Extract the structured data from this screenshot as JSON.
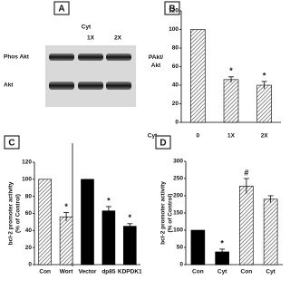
{
  "blot": {
    "panel_label": "A",
    "treatment": "Cyt",
    "lanes": [
      "1X",
      "2X"
    ],
    "rows": [
      "Phos Akt",
      "Akt"
    ]
  },
  "chart_data": [
    {
      "type": "bar",
      "panel_label": "B",
      "ylabel": [
        "PAkt/",
        "Akt"
      ],
      "xlabel": "Cyt",
      "categories": [
        "0",
        "1X",
        "2X"
      ],
      "values": [
        100,
        46,
        40
      ],
      "errors": [
        0,
        3,
        4
      ],
      "bar_styles": [
        "hatched",
        "hatched",
        "hatched"
      ],
      "marks": [
        null,
        "*",
        "*"
      ],
      "ylim": [
        0,
        120
      ],
      "yticks": [
        0,
        20,
        40,
        60,
        80,
        100,
        120
      ]
    },
    {
      "type": "bar",
      "panel_label": "C",
      "ylabel": [
        "bcl-2 promoter activity",
        "(% of Control)"
      ],
      "categories": [
        "Con",
        "Wort",
        "Vector",
        "dp85",
        "KDPDK1"
      ],
      "values": [
        100,
        56,
        100,
        63,
        45
      ],
      "errors": [
        0,
        5,
        0,
        5,
        3
      ],
      "bar_styles": [
        "hatched",
        "hatched",
        "solid",
        "solid",
        "solid"
      ],
      "marks": [
        null,
        "*",
        null,
        "*",
        "*"
      ],
      "ylim": [
        0,
        120
      ],
      "yticks": [
        0,
        20,
        40,
        60,
        80,
        100,
        120
      ]
    },
    {
      "type": "bar",
      "panel_label": "D",
      "ylabel": [
        "bcl-2 promoter activity",
        "(% of Control)"
      ],
      "categories": [
        "Con",
        "Cyt",
        "Con",
        "Cyt"
      ],
      "values": [
        100,
        37,
        228,
        190
      ],
      "errors": [
        0,
        8,
        22,
        10
      ],
      "bar_styles": [
        "solid",
        "solid",
        "hatched",
        "hatched"
      ],
      "marks": [
        null,
        "*",
        "#",
        null
      ],
      "ylim": [
        0,
        300
      ],
      "yticks": [
        0,
        50,
        100,
        150,
        200,
        250,
        300
      ]
    }
  ]
}
